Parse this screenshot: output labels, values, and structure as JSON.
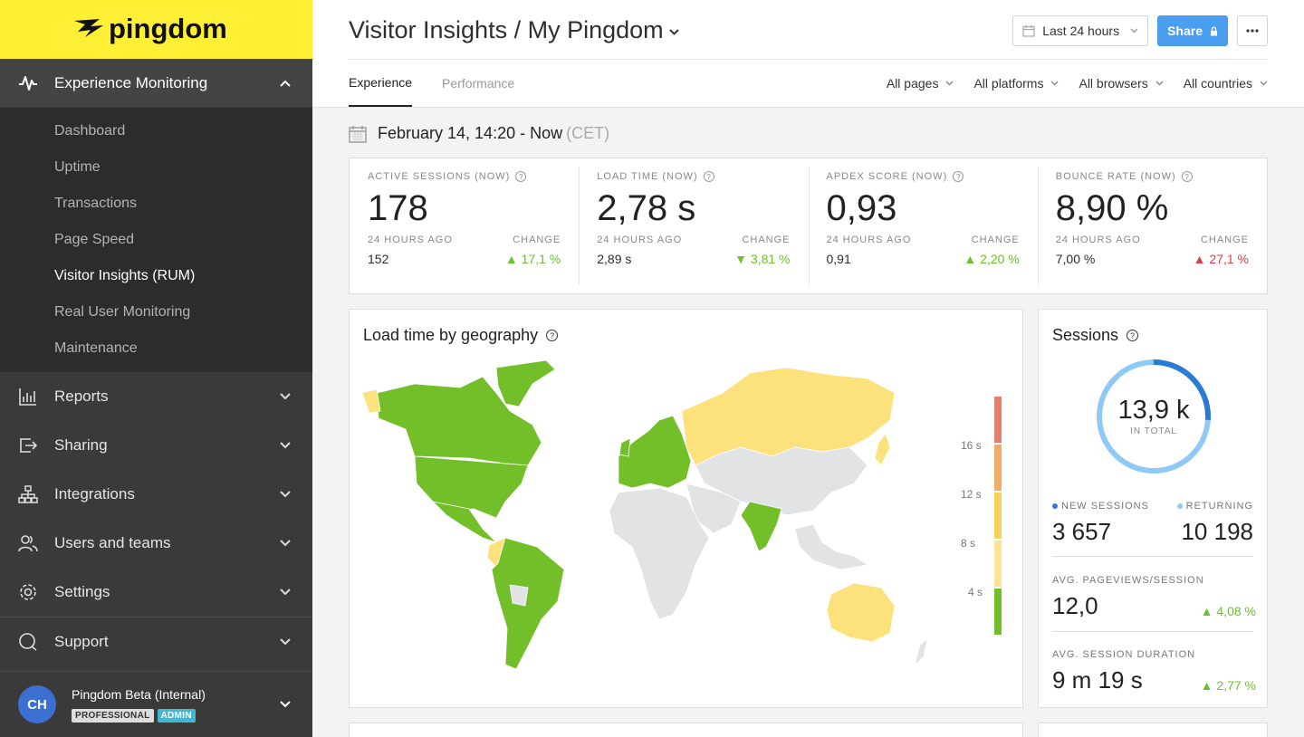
{
  "brand": {
    "logo_text": "pingdom",
    "bg_color": "#fff036"
  },
  "sidebar": {
    "section": {
      "label": "Experience Monitoring",
      "icon": "pulse-icon"
    },
    "subitems": [
      {
        "label": "Dashboard"
      },
      {
        "label": "Uptime"
      },
      {
        "label": "Transactions"
      },
      {
        "label": "Page Speed"
      },
      {
        "label": "Visitor Insights (RUM)",
        "active": true
      },
      {
        "label": "Real User Monitoring"
      },
      {
        "label": "Maintenance"
      }
    ],
    "items": [
      {
        "label": "Reports",
        "icon": "bar-chart-icon"
      },
      {
        "label": "Sharing",
        "icon": "share-icon"
      },
      {
        "label": "Integrations",
        "icon": "integrations-icon"
      },
      {
        "label": "Users and teams",
        "icon": "users-icon"
      },
      {
        "label": "Settings",
        "icon": "gear-icon"
      },
      {
        "label": "Support",
        "icon": "chat-icon"
      }
    ],
    "user": {
      "initials": "CH",
      "name": "Pingdom Beta (Internal)",
      "plan": "PROFESSIONAL",
      "role": "ADMIN"
    }
  },
  "header": {
    "title": "Visitor Insights / My Pingdom",
    "date_range": "Last 24 hours",
    "share_label": "Share",
    "tabs": [
      {
        "label": "Experience"
      },
      {
        "label": "Performance"
      }
    ],
    "filters": [
      {
        "label": "All pages"
      },
      {
        "label": "All platforms"
      },
      {
        "label": "All browsers"
      },
      {
        "label": "All countries"
      }
    ]
  },
  "period": {
    "range": "February 14, 14:20 - Now",
    "tz": "(CET)"
  },
  "kpis": [
    {
      "label": "ACTIVE SESSIONS (NOW)",
      "value": "178",
      "prev_label": "24 HOURS AGO",
      "prev": "152",
      "change_label": "CHANGE",
      "change": "17,1 %",
      "dir": "up",
      "good": true
    },
    {
      "label": "LOAD TIME (NOW)",
      "value": "2,78 s",
      "prev_label": "24 HOURS AGO",
      "prev": "2,89 s",
      "change_label": "CHANGE",
      "change": "3,81 %",
      "dir": "down",
      "good": true
    },
    {
      "label": "APDEX SCORE (NOW)",
      "value": "0,93",
      "prev_label": "24 HOURS AGO",
      "prev": "0,91",
      "change_label": "CHANGE",
      "change": "2,20 %",
      "dir": "up",
      "good": true
    },
    {
      "label": "BOUNCE RATE (NOW)",
      "value": "8,90 %",
      "prev_label": "24 HOURS AGO",
      "prev": "7,00 %",
      "change_label": "CHANGE",
      "change": "27,1 %",
      "dir": "up",
      "good": false
    }
  ],
  "geo": {
    "title": "Load time by geography",
    "legend": [
      "16 s",
      "12 s",
      "8 s",
      "4 s"
    ],
    "colors": {
      "fast": "#72bf2a",
      "medium": "#fde17c",
      "none": "#e2e3e4"
    }
  },
  "sessions": {
    "title": "Sessions",
    "total": "13,9 k",
    "total_label": "IN TOTAL",
    "new_share": 0.26,
    "new_label": "NEW SESSIONS",
    "new_value": "3 657",
    "returning_label": "RETURNING",
    "returning_value": "10 198",
    "pageviews_label": "AVG. PAGEVIEWS/SESSION",
    "pageviews_value": "12,0",
    "pageviews_change": "4,08 %",
    "duration_label": "AVG. SESSION DURATION",
    "duration_value": "9 m 19 s",
    "duration_change": "2,77 %",
    "colors": {
      "new": "#2b7bd4",
      "returning": "#8fc9f5"
    }
  }
}
